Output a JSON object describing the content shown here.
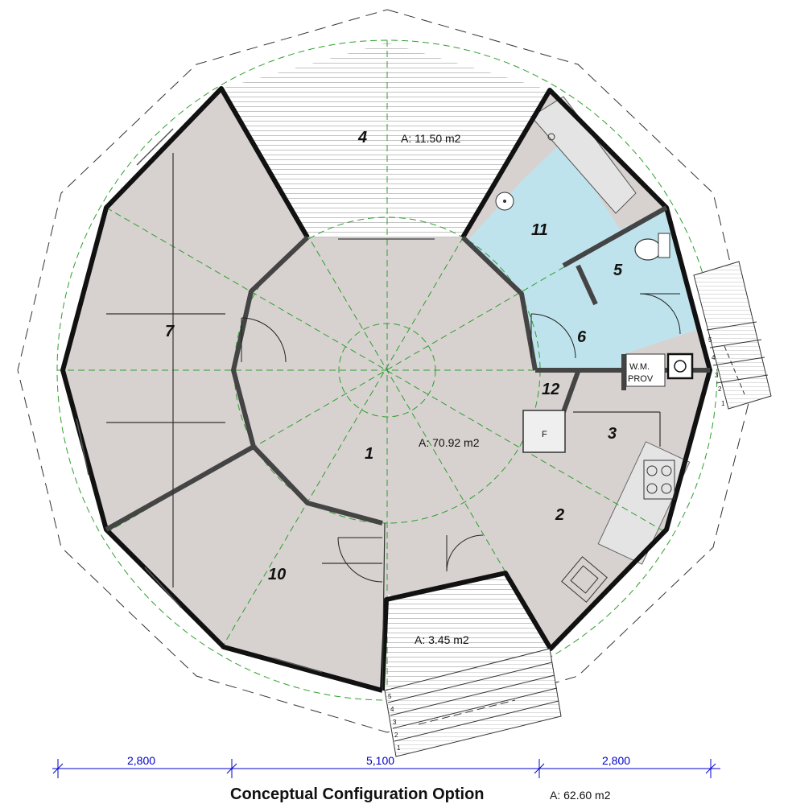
{
  "rooms": [
    {
      "id": "1",
      "label": "1"
    },
    {
      "id": "2",
      "label": "2"
    },
    {
      "id": "3",
      "label": "3"
    },
    {
      "id": "4",
      "label": "4"
    },
    {
      "id": "5",
      "label": "5"
    },
    {
      "id": "6",
      "label": "6"
    },
    {
      "id": "7",
      "label": "7"
    },
    {
      "id": "10",
      "label": "10"
    },
    {
      "id": "11",
      "label": "11"
    },
    {
      "id": "12",
      "label": "12"
    }
  ],
  "areas": {
    "deck_top": "A: 11.50 m2",
    "main": "A: 70.92 m2",
    "deck_bottom": "A: 3.45 m2"
  },
  "fixtures": {
    "fridge": "F",
    "wm_line1": "W.M.",
    "wm_line2": "PROV"
  },
  "stairs": {
    "right_steps": [
      "5",
      "4",
      "3",
      "2",
      "1"
    ],
    "bottom_steps": [
      "5",
      "4",
      "3",
      "2",
      "1"
    ]
  },
  "dimensions": [
    "2,800",
    "5,100",
    "2,800"
  ],
  "footer": {
    "title": "Conceptual Configuration Option",
    "total_area": "A: 62.60 m2"
  },
  "colors": {
    "floor": "#d7d2d0",
    "wet_area": "#bfe3ec",
    "deck": "#ffffff",
    "wall": "#111111",
    "interior_wall": "#444444",
    "guide_green": "#2f9e2f",
    "dimension_blue": "#0000cc"
  }
}
